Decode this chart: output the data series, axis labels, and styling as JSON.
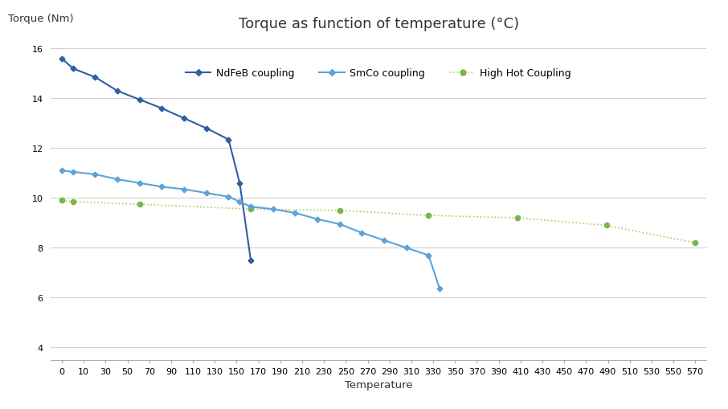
{
  "title": "Torque as function of temperature (°C)",
  "ylabel": "Torque (Nm)",
  "xlabel": "Temperature",
  "ylim": [
    3.5,
    16.5
  ],
  "yticks": [
    4,
    6,
    8,
    10,
    12,
    14,
    16
  ],
  "xtick_labels": [
    "0",
    "10",
    "30",
    "50",
    "70",
    "90",
    "110",
    "130",
    "150",
    "170",
    "190",
    "210",
    "230",
    "250",
    "270",
    "290",
    "310",
    "330",
    "350",
    "370",
    "390",
    "410",
    "430",
    "450",
    "470",
    "490",
    "510",
    "530",
    "550",
    "570"
  ],
  "ndfeb_x": [
    0,
    10,
    30,
    50,
    70,
    90,
    110,
    130,
    150,
    160,
    170
  ],
  "ndfeb_y": [
    15.6,
    15.2,
    14.85,
    14.3,
    13.95,
    13.6,
    13.2,
    12.8,
    12.35,
    10.6,
    7.5
  ],
  "smco_x": [
    0,
    10,
    30,
    50,
    70,
    90,
    110,
    130,
    150,
    160,
    170,
    190,
    210,
    230,
    250,
    270,
    290,
    310,
    330,
    340
  ],
  "smco_y": [
    11.1,
    11.05,
    10.95,
    10.75,
    10.6,
    10.45,
    10.35,
    10.2,
    10.05,
    9.85,
    9.65,
    9.55,
    9.4,
    9.15,
    8.95,
    8.6,
    8.3,
    8.0,
    7.7,
    6.35
  ],
  "hh_x": [
    0,
    10,
    70,
    170,
    250,
    330,
    410,
    490,
    570
  ],
  "hh_y": [
    9.9,
    9.85,
    9.75,
    9.55,
    9.5,
    9.3,
    9.2,
    8.9,
    8.2
  ],
  "ndfeb_color": "#2e5fa3",
  "smco_color": "#5ba3d9",
  "hh_color": "#7ab648",
  "hh_line_color": "#b5c45a",
  "bg_color": "#ffffff",
  "grid_color": "#d0d0d0",
  "title_fontsize": 13,
  "label_fontsize": 9.5,
  "tick_fontsize": 8,
  "legend_fontsize": 9
}
